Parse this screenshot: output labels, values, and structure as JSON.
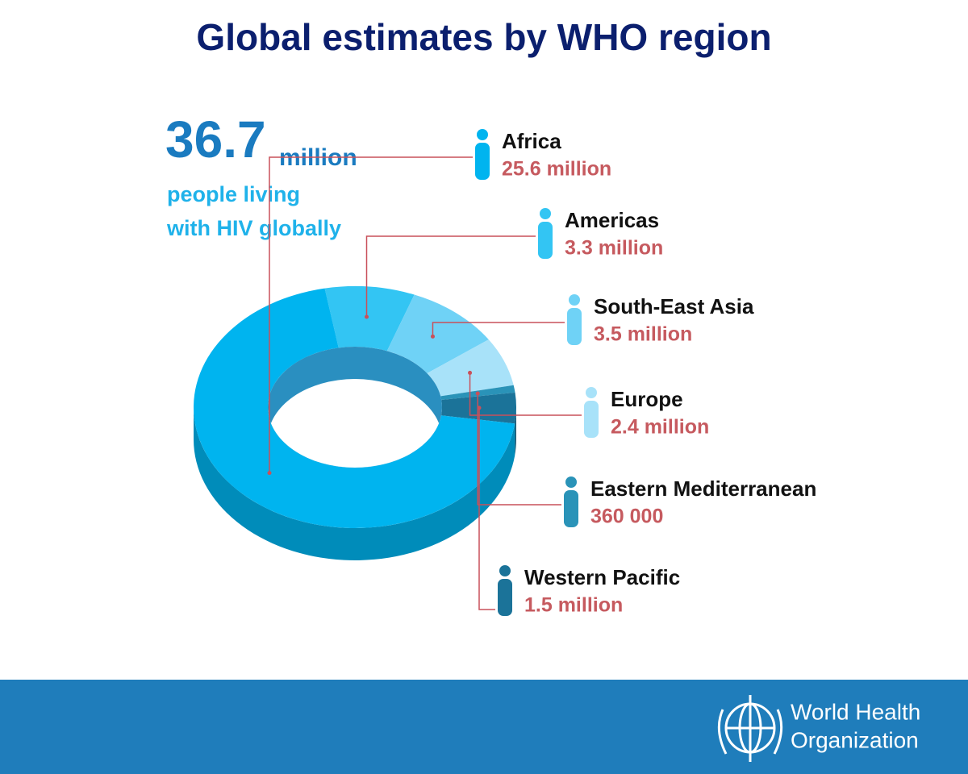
{
  "chart_data": {
    "type": "donut",
    "title": "Global estimates by WHO region",
    "headline": {
      "value": 36.7,
      "unit": "million",
      "lines": [
        "people living",
        "with HIV globally"
      ]
    },
    "categories": [
      "Africa",
      "Americas",
      "South-East Asia",
      "Europe",
      "Eastern Mediterranean",
      "Western Pacific"
    ],
    "values": [
      25600000,
      3300000,
      3500000,
      2400000,
      360000,
      1500000
    ],
    "value_labels": [
      "25.6 million",
      "3.3 million",
      "3.5 million",
      "2.4 million",
      "360 000",
      "1.5 million"
    ],
    "colors": [
      "#00b4ef",
      "#33c5f3",
      "#6fd2f6",
      "#a8e2f9",
      "#2a93b8",
      "#1b7399"
    ]
  },
  "footer": {
    "organization": [
      "World Health",
      "Organization"
    ]
  }
}
